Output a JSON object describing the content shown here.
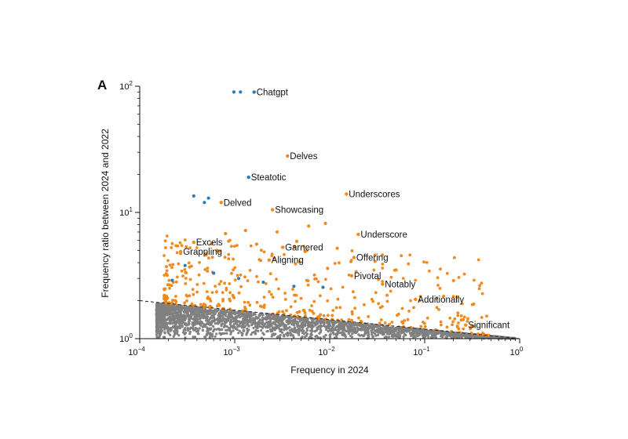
{
  "chart_data": {
    "type": "scatter",
    "panel_label": "A",
    "xlabel": "Frequency in 2024",
    "ylabel": "Frequency ratio between 2024 and 2022",
    "x_scale": "log",
    "y_scale": "log",
    "xlim": [
      0.0001,
      1
    ],
    "ylim": [
      1,
      100
    ],
    "x_ticks": [
      {
        "value": 0.0001,
        "base": "10",
        "exp": "−4"
      },
      {
        "value": 0.001,
        "base": "10",
        "exp": "−3"
      },
      {
        "value": 0.01,
        "base": "10",
        "exp": "−2"
      },
      {
        "value": 0.1,
        "base": "10",
        "exp": "−1"
      },
      {
        "value": 1,
        "base": "10",
        "exp": "0"
      }
    ],
    "y_ticks": [
      {
        "value": 1,
        "base": "10",
        "exp": "0"
      },
      {
        "value": 10,
        "base": "10",
        "exp": "1"
      },
      {
        "value": 100,
        "base": "10",
        "exp": "2"
      }
    ],
    "grid": false,
    "legend": "none",
    "colors": {
      "blue": "#2a7ab5",
      "orange": "#f08a1c",
      "gray": "#808080",
      "line": "#222222"
    },
    "threshold_line": {
      "style": "dashed",
      "points": [
        [
          0.0001,
          2.0
        ],
        [
          1,
          1.0
        ]
      ]
    },
    "background_cloud": {
      "color": "gray",
      "x_range": [
        0.00015,
        0.9
      ],
      "note_ratio_max": "below dashed line"
    },
    "labeled_words": [
      {
        "word": "Chatgpt",
        "x": 0.0016,
        "y": 90,
        "color": "blue"
      },
      {
        "word": "Delves",
        "x": 0.0036,
        "y": 28,
        "color": "orange"
      },
      {
        "word": "Steatotic",
        "x": 0.0014,
        "y": 19,
        "color": "blue"
      },
      {
        "word": "Underscores",
        "x": 0.015,
        "y": 14,
        "color": "orange"
      },
      {
        "word": "Delved",
        "x": 0.00072,
        "y": 12,
        "color": "orange"
      },
      {
        "word": "Showcasing",
        "x": 0.0025,
        "y": 10.5,
        "color": "orange"
      },
      {
        "word": "Underscore",
        "x": 0.02,
        "y": 6.7,
        "color": "orange"
      },
      {
        "word": "Excels",
        "x": 0.00037,
        "y": 5.8,
        "color": "orange"
      },
      {
        "word": "Garnered",
        "x": 0.0032,
        "y": 5.3,
        "color": "orange"
      },
      {
        "word": "Grappling",
        "x": 0.00027,
        "y": 4.9,
        "color": "orange"
      },
      {
        "word": "Offering",
        "x": 0.018,
        "y": 4.4,
        "color": "orange"
      },
      {
        "word": "Aligning",
        "x": 0.0023,
        "y": 4.2,
        "color": "orange"
      },
      {
        "word": "Pivotal",
        "x": 0.017,
        "y": 3.15,
        "color": "orange"
      },
      {
        "word": "Notably",
        "x": 0.036,
        "y": 2.7,
        "color": "orange"
      },
      {
        "word": "Additionally",
        "x": 0.08,
        "y": 2.05,
        "color": "orange"
      },
      {
        "word": "Significant",
        "x": 0.27,
        "y": 1.28,
        "color": "orange"
      }
    ],
    "unlabeled_points": [
      {
        "x": 0.00098,
        "y": 90,
        "color": "blue"
      },
      {
        "x": 0.00115,
        "y": 90,
        "color": "blue"
      },
      {
        "x": 0.00037,
        "y": 13.5,
        "color": "blue"
      },
      {
        "x": 0.00053,
        "y": 13.0,
        "color": "blue"
      },
      {
        "x": 0.00048,
        "y": 12.0,
        "color": "blue"
      },
      {
        "x": 0.0003,
        "y": 3.8,
        "color": "blue"
      },
      {
        "x": 0.0006,
        "y": 3.3,
        "color": "blue"
      },
      {
        "x": 0.0011,
        "y": 3.0,
        "color": "blue"
      },
      {
        "x": 0.002,
        "y": 2.8,
        "color": "blue"
      },
      {
        "x": 0.0042,
        "y": 2.6,
        "color": "blue"
      },
      {
        "x": 0.0085,
        "y": 2.55,
        "color": "blue"
      },
      {
        "x": 0.00022,
        "y": 2.9,
        "color": "blue"
      },
      {
        "x": 0.0045,
        "y": 5.9,
        "color": "orange"
      },
      {
        "x": 0.006,
        "y": 7.8,
        "color": "orange"
      },
      {
        "x": 0.009,
        "y": 8.2,
        "color": "orange"
      },
      {
        "x": 0.0013,
        "y": 7.2,
        "color": "orange"
      },
      {
        "x": 0.0008,
        "y": 6.8,
        "color": "orange"
      },
      {
        "x": 0.0055,
        "y": 4.9,
        "color": "orange"
      },
      {
        "x": 0.012,
        "y": 5.2,
        "color": "orange"
      },
      {
        "x": 0.0028,
        "y": 7.0,
        "color": "orange"
      },
      {
        "x": 0.0017,
        "y": 5.6,
        "color": "orange"
      },
      {
        "x": 0.05,
        "y": 3.5,
        "color": "orange"
      },
      {
        "x": 0.03,
        "y": 4.1,
        "color": "orange"
      },
      {
        "x": 0.0095,
        "y": 3.6,
        "color": "orange"
      },
      {
        "x": 0.0005,
        "y": 4.6,
        "color": "orange"
      },
      {
        "x": 0.00065,
        "y": 5.0,
        "color": "orange"
      }
    ]
  }
}
